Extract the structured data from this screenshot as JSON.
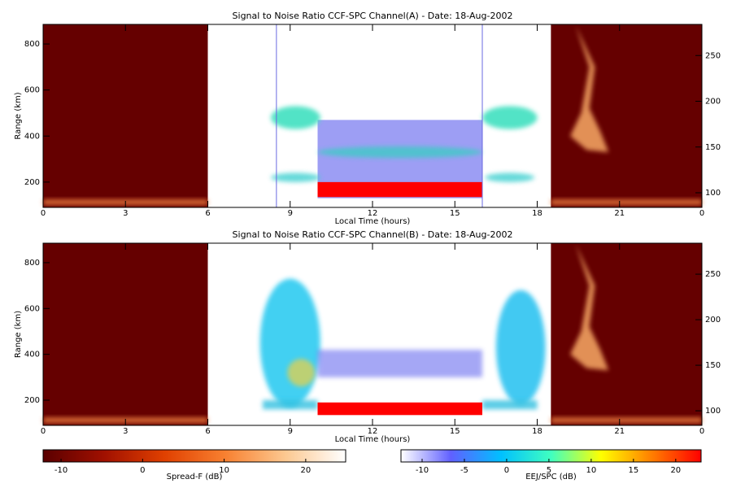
{
  "chart_data": [
    {
      "type": "heatmap",
      "title": "Signal to Noise Ratio CCF-SPC Channel(A) - Date: 18-Aug-2002",
      "xlabel": "Local Time (hours)",
      "ylabel": "Range (km)",
      "xlim": [
        0,
        24
      ],
      "xticks": [
        0,
        3,
        6,
        9,
        12,
        15,
        18,
        21,
        {
          "value": 24,
          "label": "0"
        }
      ],
      "ylim": [
        90,
        885
      ],
      "yticks": [
        200,
        400,
        600,
        800
      ],
      "y2lim": [
        84,
        284
      ],
      "y2ticks": [
        100,
        150,
        200,
        250
      ]
    },
    {
      "type": "heatmap",
      "title": "Signal to Noise Ratio CCF-SPC Channel(B) - Date: 18-Aug-2002",
      "xlabel": "Local Time (hours)",
      "ylabel": "Range (km)",
      "xlim": [
        0,
        24
      ],
      "xticks": [
        0,
        3,
        6,
        9,
        12,
        15,
        18,
        21,
        {
          "value": 24,
          "label": "0"
        }
      ],
      "ylim": [
        90,
        885
      ],
      "yticks": [
        200,
        400,
        600,
        800
      ],
      "y2lim": [
        84,
        284
      ],
      "y2ticks": [
        100,
        150,
        200,
        250
      ]
    },
    {
      "type": "colorbar",
      "label": "Spread-F (dB)",
      "lim": [
        -12.2,
        24.9
      ],
      "ticks": [
        -10,
        0,
        10,
        20
      ],
      "colors": [
        "#5a0000",
        "#a01000",
        "#e04000",
        "#f88030",
        "#fcc890",
        "#ffffff"
      ]
    },
    {
      "type": "colorbar",
      "label": "EEJ/SPC (dB)",
      "lim": [
        -12.5,
        23
      ],
      "ticks": [
        -10,
        -5,
        0,
        5,
        10,
        15,
        20
      ],
      "colors": [
        "#ffffff",
        "#6060ff",
        "#00c0ff",
        "#40ffc0",
        "#ffff00",
        "#ff8000",
        "#ff0000"
      ]
    }
  ]
}
